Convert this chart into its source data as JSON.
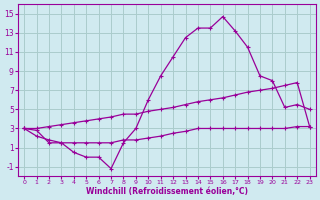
{
  "xlabel": "Windchill (Refroidissement éolien,°C)",
  "bg_color": "#d0eaf0",
  "grid_color": "#aacccc",
  "line_color": "#990099",
  "xlim": [
    -0.5,
    23.5
  ],
  "ylim": [
    -2,
    16
  ],
  "xticks": [
    0,
    1,
    2,
    3,
    4,
    5,
    6,
    7,
    8,
    9,
    10,
    11,
    12,
    13,
    14,
    15,
    16,
    17,
    18,
    19,
    20,
    21,
    22,
    23
  ],
  "yticks": [
    -1,
    1,
    3,
    5,
    7,
    9,
    11,
    13,
    15
  ],
  "line1_x": [
    0,
    1,
    2,
    3,
    4,
    5,
    6,
    7,
    8,
    9,
    10,
    11,
    12,
    13,
    14,
    15,
    16,
    17,
    18,
    19,
    20,
    21,
    22,
    23
  ],
  "line1_y": [
    3.0,
    3.0,
    3.2,
    3.4,
    3.6,
    3.8,
    4.0,
    4.2,
    4.5,
    4.5,
    4.8,
    5.0,
    5.2,
    5.5,
    5.8,
    6.0,
    6.2,
    6.5,
    6.8,
    7.0,
    7.2,
    7.5,
    7.8,
    3.2
  ],
  "line2_x": [
    0,
    1,
    2,
    3,
    4,
    5,
    6,
    7,
    8,
    9,
    10,
    11,
    12,
    13,
    14,
    15,
    16,
    17,
    18,
    19,
    20,
    21,
    22,
    23
  ],
  "line2_y": [
    3.0,
    2.2,
    1.8,
    1.5,
    1.5,
    1.5,
    1.5,
    1.5,
    1.8,
    1.8,
    2.0,
    2.2,
    2.5,
    2.7,
    3.0,
    3.0,
    3.0,
    3.0,
    3.0,
    3.0,
    3.0,
    3.0,
    3.2,
    3.2
  ],
  "line3_x": [
    0,
    1,
    2,
    3,
    4,
    5,
    6,
    7,
    8,
    9,
    10,
    11,
    12,
    13,
    14,
    15,
    16,
    17,
    18,
    19,
    20,
    21,
    22,
    23
  ],
  "line3_y": [
    3.0,
    2.8,
    1.5,
    1.5,
    0.5,
    0.0,
    0.0,
    -1.2,
    1.5,
    3.0,
    6.0,
    8.5,
    10.5,
    12.5,
    13.5,
    13.5,
    14.7,
    13.2,
    11.5,
    8.5,
    8.0,
    5.2,
    5.5,
    5.0
  ]
}
